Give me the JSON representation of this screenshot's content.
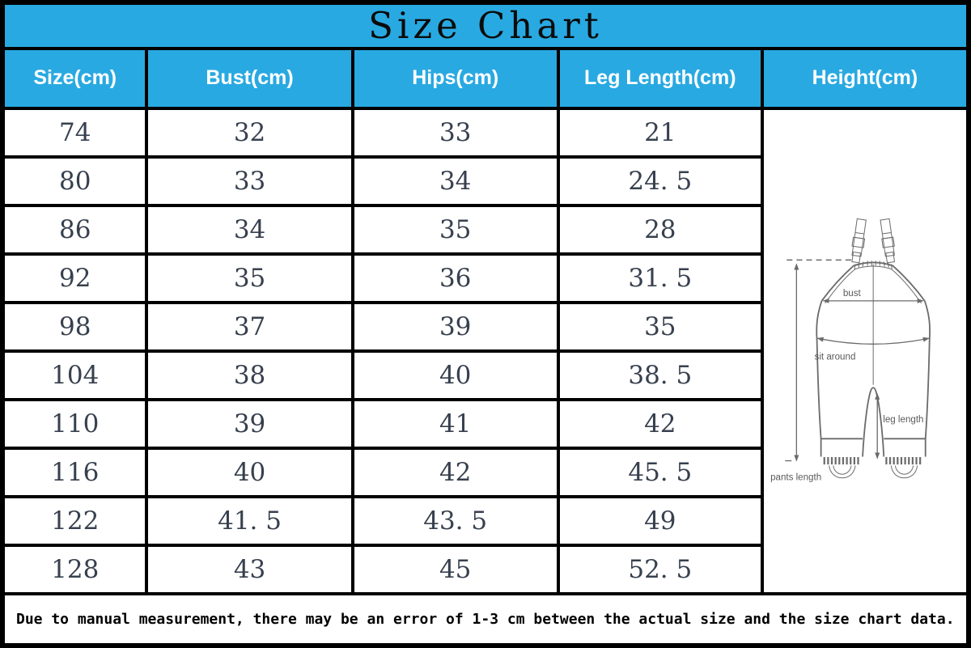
{
  "title": "Size Chart",
  "table": {
    "columns": [
      "Size(cm)",
      "Bust(cm)",
      "Hips(cm)",
      "Leg Length(cm)",
      "Height(cm)"
    ],
    "rows": [
      {
        "size": "74",
        "bust": "32",
        "hips": "33",
        "leg_length": "21"
      },
      {
        "size": "80",
        "bust": "33",
        "hips": "34",
        "leg_length": "24. 5"
      },
      {
        "size": "86",
        "bust": "34",
        "hips": "35",
        "leg_length": "28"
      },
      {
        "size": "92",
        "bust": "35",
        "hips": "36",
        "leg_length": "31. 5"
      },
      {
        "size": "98",
        "bust": "37",
        "hips": "39",
        "leg_length": "35"
      },
      {
        "size": "104",
        "bust": "38",
        "hips": "40",
        "leg_length": "38. 5"
      },
      {
        "size": "110",
        "bust": "39",
        "hips": "41",
        "leg_length": "42"
      },
      {
        "size": "116",
        "bust": "40",
        "hips": "42",
        "leg_length": "45. 5"
      },
      {
        "size": "122",
        "bust": "41. 5",
        "hips": "43. 5",
        "leg_length": "49"
      },
      {
        "size": "128",
        "bust": "43",
        "hips": "45",
        "leg_length": "52. 5"
      }
    ]
  },
  "diagram": {
    "labels": {
      "bust": "bust",
      "sit_around": "sit around",
      "leg_length": "leg length",
      "pants_length": "pants length"
    }
  },
  "footer_note": "Due to manual measurement, there may be an error of 1-3 cm between the actual size and the size chart data.",
  "colors": {
    "header_bg": "#29a9e1",
    "border_color": "#000000",
    "data_text": "#37404e",
    "diagram_line": "#6b6b6b",
    "diagram_text": "#5a5a5a"
  },
  "chart_data": {
    "type": "table",
    "title": "Size Chart",
    "columns": [
      "Size(cm)",
      "Bust(cm)",
      "Hips(cm)",
      "Leg Length(cm)",
      "Height(cm)"
    ],
    "rows": [
      [
        74,
        32,
        33,
        21,
        null
      ],
      [
        80,
        33,
        34,
        24.5,
        null
      ],
      [
        86,
        34,
        35,
        28,
        null
      ],
      [
        92,
        35,
        36,
        31.5,
        null
      ],
      [
        98,
        37,
        39,
        35,
        null
      ],
      [
        104,
        38,
        40,
        38.5,
        null
      ],
      [
        110,
        39,
        41,
        42,
        null
      ],
      [
        116,
        40,
        42,
        45.5,
        null
      ],
      [
        122,
        41.5,
        43.5,
        49,
        null
      ],
      [
        128,
        43,
        45,
        52.5,
        null
      ]
    ],
    "note": "Height(cm) column contains an overalls measurement diagram instead of values. Footer: Due to manual measurement, there may be an error of 1-3 cm between the actual size and the size chart data."
  }
}
